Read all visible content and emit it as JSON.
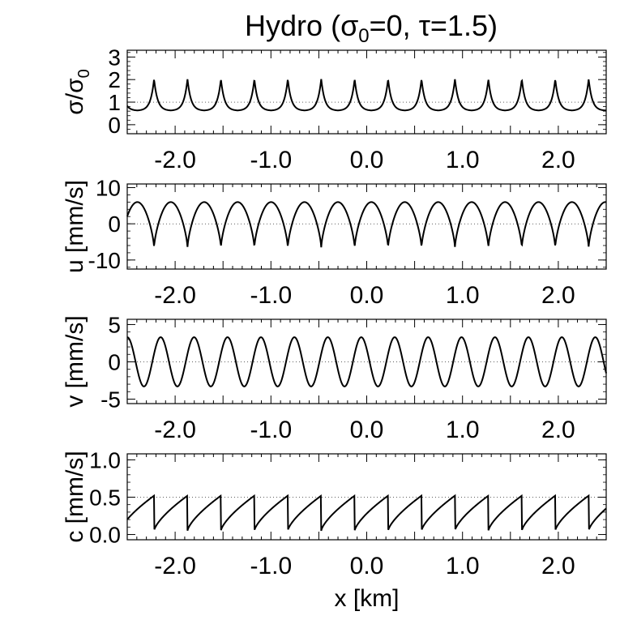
{
  "title": {
    "prefix": "Hydro (",
    "sigma": "σ",
    "sigma_sub": "0",
    "suffix": "=0, τ=1.5)"
  },
  "chart_data": [
    {
      "type": "line",
      "ylabel": {
        "main": "σ",
        "sub": "0",
        "prefix": "σ/σ"
      },
      "xlim": [
        -2.5,
        2.5
      ],
      "ylim": [
        -0.4,
        3.3
      ],
      "yticks": [
        0,
        1,
        2,
        3
      ],
      "ytick_labels": [
        "0",
        "1",
        "2",
        "3"
      ],
      "xticks": [
        -2.0,
        -1.0,
        0.0,
        1.0,
        2.0
      ],
      "xtick_labels": [
        "-2.0",
        "-1.0",
        "0.0",
        "1.0",
        "2.0"
      ],
      "hline": 1,
      "wavelength": 0.349,
      "peak_x": -2.22,
      "x": [
        -2.5,
        -2.4127,
        -2.3255,
        -2.2382,
        -2.2207,
        -2.2033,
        -2.116,
        -2.0287,
        -1.9415,
        -1.8717,
        -1.8542,
        -1.7669,
        -1.6797,
        -1.5924,
        -1.5227,
        -1.5052,
        -1.4179,
        -1.3307,
        -1.2434,
        -1.1737,
        -1.1562,
        -1.0689,
        -0.9817,
        -0.8944,
        -0.8247,
        -0.8072,
        -0.7199,
        -0.6327,
        -0.5454,
        -0.4757,
        -0.4582,
        -0.3709,
        -0.2837,
        -0.1964,
        -0.1267,
        -0.1092,
        -0.0219,
        0.0653,
        0.1526,
        0.2223,
        0.2398,
        0.3271,
        0.4143,
        0.5016,
        0.5713,
        0.5888,
        0.6761,
        0.7633,
        0.8506,
        0.9203,
        0.9378,
        1.0251,
        1.1123,
        1.1996,
        1.2693,
        1.2868,
        1.3741,
        1.4613,
        1.5486,
        1.6183,
        1.6358,
        1.7231,
        1.8103,
        1.8976,
        1.9673,
        1.9848,
        2.0721,
        2.1593,
        2.2466,
        2.3163,
        2.3338,
        2.4211,
        2.5
      ],
      "y": [
        0.78,
        0.62,
        0.74,
        1.55,
        2.02,
        1.55,
        0.74,
        0.62,
        0.74,
        1.55,
        2.02,
        1.55,
        0.74,
        0.62,
        0.74,
        1.55,
        2.02,
        1.55,
        0.74,
        0.62,
        0.74,
        1.55,
        2.02,
        1.55,
        0.74,
        0.62,
        0.74,
        1.55,
        2.02,
        1.55,
        0.74,
        0.62,
        0.74,
        1.55,
        2.02,
        1.55,
        0.74,
        0.62,
        0.74,
        1.55,
        2.02,
        1.55,
        0.74,
        0.62,
        0.74,
        1.55,
        2.02,
        1.55,
        0.74,
        0.62,
        0.74,
        1.55,
        2.02,
        1.55,
        0.74,
        0.62,
        0.74,
        1.55,
        2.02,
        1.55,
        0.74,
        0.62,
        0.74,
        1.55,
        2.02,
        1.55,
        0.74,
        0.62,
        0.74,
        1.55,
        2.02,
        1.55,
        0.78
      ]
    },
    {
      "type": "line",
      "ylabel": "u [mm/s]",
      "xlim": [
        -2.5,
        2.5
      ],
      "ylim": [
        -12.5,
        11
      ],
      "yticks": [
        -10,
        0,
        10
      ],
      "ytick_labels": [
        "-10",
        "0",
        "10"
      ],
      "xticks": [
        -2.0,
        -1.0,
        0.0,
        1.0,
        2.0
      ],
      "xtick_labels": [
        "-2.0",
        "-1.0",
        "0.0",
        "1.0",
        "2.0"
      ],
      "hline": 0,
      "wavelength": 0.349,
      "peak_x": -2.22,
      "min_value": -6.5,
      "max_value": 6.0
    },
    {
      "type": "line",
      "ylabel": "v [mm/s]",
      "xlim": [
        -2.5,
        2.5
      ],
      "ylim": [
        -5.6,
        5.7
      ],
      "yticks": [
        -5,
        0,
        5
      ],
      "ytick_labels": [
        "-5",
        "0",
        "5"
      ],
      "xticks": [
        -2.0,
        -1.0,
        0.0,
        1.0,
        2.0
      ],
      "xtick_labels": [
        "-2.0",
        "-1.0",
        "0.0",
        "1.0",
        "2.0"
      ],
      "hline": 0,
      "wavelength": 0.349,
      "amplitude": 3.3
    },
    {
      "type": "line",
      "ylabel": "c [mm/s]",
      "xlabel": "x [km]",
      "xlim": [
        -2.5,
        2.5
      ],
      "ylim": [
        -0.07,
        1.08
      ],
      "yticks": [
        0.0,
        0.5,
        1.0
      ],
      "ytick_labels": [
        "0.0",
        "0.5",
        "1.0"
      ],
      "xticks": [
        -2.0,
        -1.0,
        0.0,
        1.0,
        2.0
      ],
      "xtick_labels": [
        "-2.0",
        "-1.0",
        "0.0",
        "1.0",
        "2.0"
      ],
      "hline": 0.5,
      "wavelength": 0.349,
      "peak_x": -2.22,
      "min_value": 0.05,
      "max_value": 0.52
    }
  ]
}
